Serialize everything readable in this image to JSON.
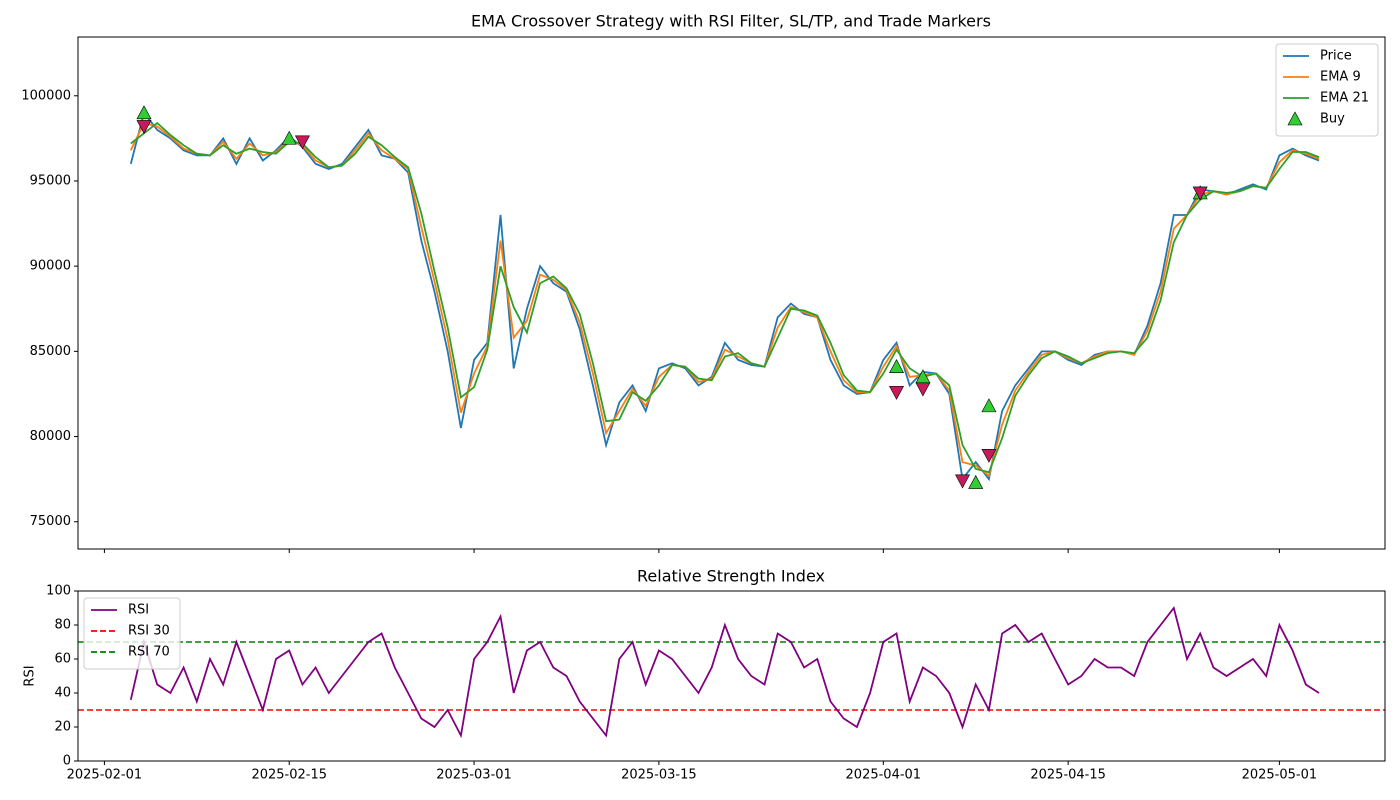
{
  "chart_data": [
    {
      "type": "line",
      "title": "EMA Crossover Strategy with RSI Filter, SL/TP, and Trade Markers",
      "x": [
        "2025-02-03",
        "2025-02-04",
        "2025-02-05",
        "2025-02-06",
        "2025-02-07",
        "2025-02-08",
        "2025-02-09",
        "2025-02-10",
        "2025-02-11",
        "2025-02-12",
        "2025-02-13",
        "2025-02-14",
        "2025-02-15",
        "2025-02-16",
        "2025-02-17",
        "2025-02-18",
        "2025-02-19",
        "2025-02-20",
        "2025-02-21",
        "2025-02-22",
        "2025-02-23",
        "2025-02-24",
        "2025-02-25",
        "2025-02-26",
        "2025-02-27",
        "2025-02-28",
        "2025-03-01",
        "2025-03-02",
        "2025-03-03",
        "2025-03-04",
        "2025-03-05",
        "2025-03-06",
        "2025-03-07",
        "2025-03-08",
        "2025-03-09",
        "2025-03-10",
        "2025-03-11",
        "2025-03-12",
        "2025-03-13",
        "2025-03-14",
        "2025-03-15",
        "2025-03-16",
        "2025-03-17",
        "2025-03-18",
        "2025-03-19",
        "2025-03-20",
        "2025-03-21",
        "2025-03-22",
        "2025-03-23",
        "2025-03-24",
        "2025-03-25",
        "2025-03-26",
        "2025-03-27",
        "2025-03-28",
        "2025-03-29",
        "2025-03-30",
        "2025-03-31",
        "2025-04-01",
        "2025-04-02",
        "2025-04-03",
        "2025-04-04",
        "2025-04-05",
        "2025-04-06",
        "2025-04-07",
        "2025-04-08",
        "2025-04-09",
        "2025-04-10",
        "2025-04-11",
        "2025-04-12",
        "2025-04-13",
        "2025-04-14",
        "2025-04-15",
        "2025-04-16",
        "2025-04-17",
        "2025-04-18",
        "2025-04-19",
        "2025-04-20",
        "2025-04-21",
        "2025-04-22",
        "2025-04-23",
        "2025-04-24",
        "2025-04-25",
        "2025-04-26",
        "2025-04-27",
        "2025-04-28",
        "2025-04-29",
        "2025-04-30",
        "2025-05-01",
        "2025-05-02",
        "2025-05-03",
        "2025-05-04"
      ],
      "series": [
        {
          "name": "Price",
          "color": "#1f77b4",
          "values": [
            96000,
            99000,
            98000,
            97500,
            96800,
            96500,
            96500,
            97500,
            96000,
            97500,
            96200,
            96800,
            97600,
            97000,
            96000,
            95700,
            96000,
            97000,
            98000,
            96500,
            96300,
            95500,
            91500,
            88500,
            85000,
            80500,
            84500,
            85500,
            93000,
            84000,
            87500,
            90000,
            89000,
            88500,
            86300,
            83000,
            79500,
            82000,
            83000,
            81500,
            84000,
            84300,
            84000,
            83000,
            83500,
            85500,
            84500,
            84200,
            84100,
            87000,
            87800,
            87200,
            87000,
            84500,
            83000,
            82500,
            82600,
            84500,
            85500,
            83000,
            83800,
            83700,
            82500,
            77500,
            78500,
            77500,
            81500,
            83000,
            84000,
            85000,
            85000,
            84500,
            84200,
            84800,
            85000,
            85000,
            84800,
            86500,
            89000,
            93000,
            93000,
            94500,
            94400,
            94200,
            94500,
            94800,
            94500,
            96500,
            96900,
            96500,
            96200
          ]
        },
        {
          "name": "EMA 9",
          "color": "#ff7f0e",
          "values": [
            96800,
            98400,
            98200,
            97600,
            96900,
            96600,
            96500,
            97300,
            96300,
            97200,
            96500,
            96700,
            97400,
            97100,
            96200,
            95800,
            95900,
            96800,
            97800,
            96800,
            96300,
            95700,
            92300,
            89100,
            85700,
            81400,
            83700,
            85300,
            91500,
            85800,
            86800,
            89500,
            89200,
            88600,
            86700,
            83700,
            80200,
            81500,
            82800,
            81800,
            83500,
            84200,
            84100,
            83200,
            83400,
            85100,
            84700,
            84300,
            84100,
            86400,
            87600,
            87300,
            87000,
            85000,
            83300,
            82600,
            82600,
            84100,
            85300,
            83500,
            83600,
            83700,
            82700,
            78500,
            78300,
            77700,
            80700,
            82700,
            83800,
            84800,
            85000,
            84600,
            84300,
            84700,
            85000,
            85000,
            84800,
            86200,
            88500,
            92200,
            93000,
            94200,
            94400,
            94200,
            94400,
            94700,
            94600,
            96100,
            96800,
            96600,
            96300
          ]
        },
        {
          "name": "EMA 21",
          "color": "#2ca02c",
          "values": [
            97200,
            97800,
            98400,
            97700,
            97100,
            96600,
            96500,
            97100,
            96600,
            96900,
            96700,
            96600,
            97300,
            97200,
            96400,
            95800,
            95900,
            96600,
            97600,
            97100,
            96400,
            95800,
            93100,
            89700,
            86400,
            82300,
            82900,
            85100,
            90000,
            87600,
            86100,
            89000,
            89400,
            88700,
            87200,
            84300,
            80900,
            81000,
            82600,
            82100,
            83000,
            84200,
            84100,
            83400,
            83300,
            84700,
            84900,
            84300,
            84100,
            85800,
            87500,
            87400,
            87100,
            85500,
            83600,
            82700,
            82600,
            83700,
            85100,
            84000,
            83500,
            83700,
            83000,
            79500,
            78100,
            77900,
            79900,
            82400,
            83600,
            84600,
            85000,
            84700,
            84300,
            84600,
            84900,
            85000,
            84900,
            85800,
            88000,
            91400,
            93000,
            93900,
            94400,
            94300,
            94400,
            94700,
            94600,
            95700,
            96700,
            96700,
            96400
          ]
        }
      ],
      "markers": [
        {
          "name": "Buy",
          "shape": "up",
          "color": "#32cd32",
          "x": [
            "2025-02-04",
            "2025-02-15",
            "2025-04-02",
            "2025-04-04",
            "2025-04-08",
            "2025-04-09",
            "2025-04-25"
          ],
          "values": [
            99000,
            97500,
            84100,
            83500,
            77300,
            81800,
            94300
          ]
        },
        {
          "shape": "down",
          "color": "#c71a5a",
          "x": [
            "2025-02-04",
            "2025-02-16",
            "2025-04-02",
            "2025-04-04",
            "2025-04-07",
            "2025-04-09",
            "2025-04-25"
          ],
          "values": [
            98200,
            97300,
            82600,
            82800,
            77400,
            78900,
            94300
          ]
        }
      ],
      "xlim": [
        "2025-01-30",
        "2025-05-09"
      ],
      "ylim": [
        73400,
        103450
      ],
      "yticks": [
        75000,
        80000,
        85000,
        90000,
        95000,
        100000
      ],
      "legend": "upper right"
    },
    {
      "type": "line",
      "title": "Relative Strength Index",
      "ylabel": "RSI",
      "x": [
        "2025-02-03",
        "2025-02-04",
        "2025-02-05",
        "2025-02-06",
        "2025-02-07",
        "2025-02-08",
        "2025-02-09",
        "2025-02-10",
        "2025-02-11",
        "2025-02-12",
        "2025-02-13",
        "2025-02-14",
        "2025-02-15",
        "2025-02-16",
        "2025-02-17",
        "2025-02-18",
        "2025-02-19",
        "2025-02-20",
        "2025-02-21",
        "2025-02-22",
        "2025-02-23",
        "2025-02-24",
        "2025-02-25",
        "2025-02-26",
        "2025-02-27",
        "2025-02-28",
        "2025-03-01",
        "2025-03-02",
        "2025-03-03",
        "2025-03-04",
        "2025-03-05",
        "2025-03-06",
        "2025-03-07",
        "2025-03-08",
        "2025-03-09",
        "2025-03-10",
        "2025-03-11",
        "2025-03-12",
        "2025-03-13",
        "2025-03-14",
        "2025-03-15",
        "2025-03-16",
        "2025-03-17",
        "2025-03-18",
        "2025-03-19",
        "2025-03-20",
        "2025-03-21",
        "2025-03-22",
        "2025-03-23",
        "2025-03-24",
        "2025-03-25",
        "2025-03-26",
        "2025-03-27",
        "2025-03-28",
        "2025-03-29",
        "2025-03-30",
        "2025-03-31",
        "2025-04-01",
        "2025-04-02",
        "2025-04-03",
        "2025-04-04",
        "2025-04-05",
        "2025-04-06",
        "2025-04-07",
        "2025-04-08",
        "2025-04-09",
        "2025-04-10",
        "2025-04-11",
        "2025-04-12",
        "2025-04-13",
        "2025-04-14",
        "2025-04-15",
        "2025-04-16",
        "2025-04-17",
        "2025-04-18",
        "2025-04-19",
        "2025-04-20",
        "2025-04-21",
        "2025-04-22",
        "2025-04-23",
        "2025-04-24",
        "2025-04-25",
        "2025-04-26",
        "2025-04-27",
        "2025-04-28",
        "2025-04-29",
        "2025-04-30",
        "2025-05-01",
        "2025-05-02",
        "2025-05-03",
        "2025-05-04"
      ],
      "series": [
        {
          "name": "RSI",
          "color": "#800080",
          "values": [
            36,
            70,
            45,
            40,
            55,
            35,
            60,
            45,
            70,
            50,
            30,
            60,
            65,
            45,
            55,
            40,
            50,
            60,
            70,
            75,
            55,
            40,
            25,
            20,
            30,
            15,
            60,
            70,
            85,
            40,
            65,
            70,
            55,
            50,
            35,
            25,
            15,
            60,
            70,
            45,
            65,
            60,
            50,
            40,
            55,
            80,
            60,
            50,
            45,
            75,
            70,
            55,
            60,
            35,
            25,
            20,
            40,
            70,
            75,
            35,
            55,
            50,
            40,
            20,
            45,
            30,
            75,
            80,
            70,
            75,
            60,
            45,
            50,
            60,
            55,
            55,
            50,
            70,
            80,
            90,
            60,
            75,
            55,
            50,
            55,
            60,
            50,
            80,
            65,
            45,
            40
          ]
        }
      ],
      "hlines": [
        {
          "name": "RSI 30",
          "value": 30,
          "color": "#ff0000"
        },
        {
          "name": "RSI 70",
          "value": 70,
          "color": "#008000"
        }
      ],
      "xlim": [
        "2025-01-30",
        "2025-05-09"
      ],
      "ylim": [
        0,
        100
      ],
      "yticks": [
        0,
        20,
        40,
        60,
        80,
        100
      ],
      "xticks": [
        "2025-02-01",
        "2025-02-15",
        "2025-03-01",
        "2025-03-15",
        "2025-04-01",
        "2025-04-15",
        "2025-05-01"
      ],
      "legend": "upper left"
    }
  ]
}
